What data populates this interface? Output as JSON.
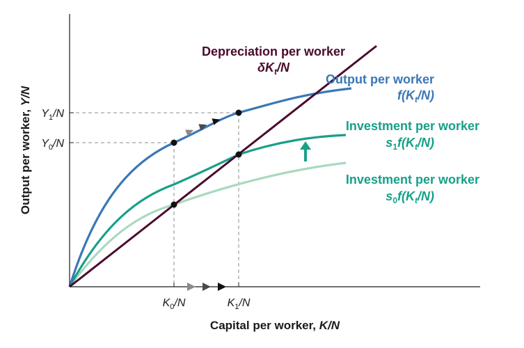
{
  "axes": {
    "x_title": "Capital per worker,",
    "x_title_var": "K/N",
    "y_title": "Output per worker,",
    "y_title_var": "Y/N"
  },
  "ticks": {
    "k0": {
      "base": "K",
      "sub": "0",
      "tail": "/N"
    },
    "k1": {
      "base": "K",
      "sub": "1",
      "tail": "/N"
    },
    "y0": {
      "base": "Y",
      "sub": "0",
      "tail": "/N"
    },
    "y1": {
      "base": "Y",
      "sub": "1",
      "tail": "/N"
    }
  },
  "curves": {
    "depreciation": {
      "label": "Depreciation per worker",
      "formula": {
        "a": "δK",
        "sub": "t",
        "b": "/N"
      },
      "color": "#4a0a2e"
    },
    "output": {
      "label": "Output per worker",
      "formula": {
        "a": "f(K",
        "sub": "t",
        "b": "/N)"
      },
      "color": "#3a78b5"
    },
    "investment_new": {
      "label": "Investment per worker",
      "formula": {
        "a": "s",
        "sub1": "1",
        "b": "f(K",
        "sub2": "t",
        "c": "/N)"
      },
      "color": "#17a088"
    },
    "investment_old": {
      "label": "Investment per worker",
      "formula": {
        "a": "s",
        "sub1": "0",
        "b": "f(K",
        "sub2": "t",
        "c": "/N)"
      },
      "color": "#17a088",
      "line_color": "#a8d9be"
    }
  },
  "colors": {
    "axis": "#1a1a1a",
    "guide": "#8c8c8c",
    "point": "#111111",
    "arrow_light": "#8a8a8a",
    "arrow_mid": "#4a4a4a",
    "arrow_dark": "#111111",
    "shift_arrow": "#17a088"
  }
}
